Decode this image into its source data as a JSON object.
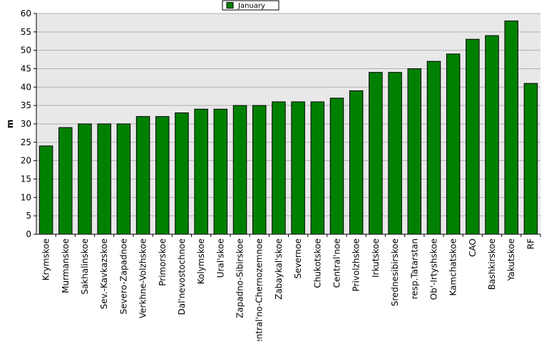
{
  "chart_data": {
    "type": "bar",
    "ylabel": "m",
    "ylim": [
      0,
      60
    ],
    "yticks": [
      0,
      5,
      10,
      15,
      20,
      25,
      30,
      35,
      40,
      45,
      50,
      55,
      60
    ],
    "grid": true,
    "legend_position": "top-center",
    "categories": [
      "Krymskoe",
      "Murmanskoe",
      "Sakhalinskoe",
      "Sev.-Kavkazskoe",
      "Severo-Zapadnoe",
      "Verkhne-Volzhskoe",
      "Primorskoe",
      "Dal'nevostochnoe",
      "Kolymskoe",
      "Ural'skoe",
      "Zapadno-Sibirskoe",
      "Central'no-Chernozemnoe",
      "Zabaykal'skoe",
      "Severnoe",
      "Chukotskoe",
      "Central'noe",
      "Privolzhskoe",
      "Irkutskoe",
      "Srednesibirskoe",
      "resp.Tatarstan",
      "Ob'-Irtyshskoe",
      "Kamchatskoe",
      "CAO",
      "Bashkirskoe",
      "Yakutskoe",
      "RF"
    ],
    "series": [
      {
        "name": "January",
        "color": "#008000",
        "values": [
          24,
          29,
          30,
          30,
          30,
          32,
          32,
          33,
          34,
          34,
          35,
          35,
          36,
          36,
          36,
          37,
          39,
          44,
          44,
          45,
          47,
          49,
          53,
          54,
          58,
          41
        ]
      }
    ]
  }
}
